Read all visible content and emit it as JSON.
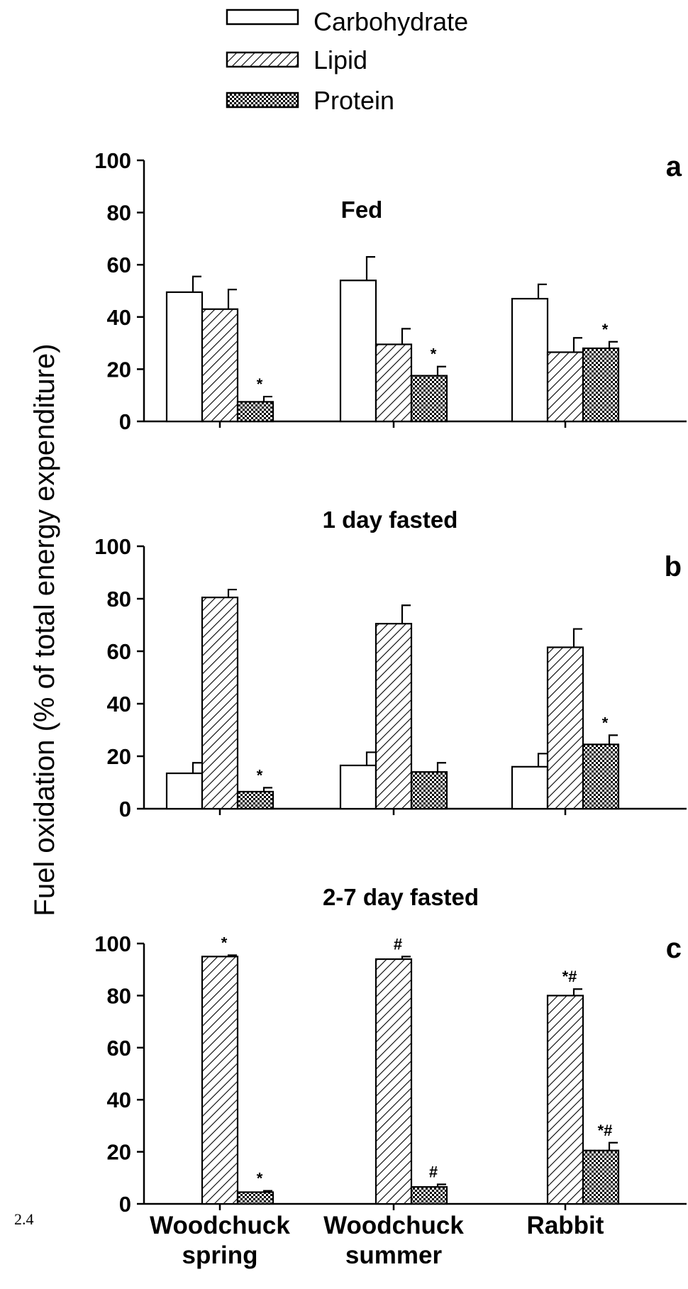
{
  "page_number": "2.4",
  "chart_data": {
    "type": "bar",
    "ylabel": "Fuel oxidation (% of total energy expenditure)",
    "ylim": [
      0,
      100
    ],
    "yticks": [
      "0",
      "20",
      "40",
      "60",
      "80",
      "100"
    ],
    "categories": [
      [
        "Woodchuck",
        "spring"
      ],
      [
        "Woodchuck",
        "summer"
      ],
      [
        "Rabbit"
      ]
    ],
    "legend": {
      "placement": "top-center",
      "entries": [
        {
          "name": "Carbohydrate",
          "fill": "white"
        },
        {
          "name": "Lipid",
          "fill": "diagonal-hatch"
        },
        {
          "name": "Protein",
          "fill": "crosshatch"
        }
      ]
    },
    "bar_colors": {
      "edge": "#000000",
      "background": "#ffffff"
    },
    "panels": [
      {
        "letter": "a",
        "title": "Fed",
        "series": [
          {
            "name": "Carbohydrate",
            "values": [
              49.5,
              54,
              47
            ],
            "errors": [
              6,
              9,
              5.5
            ],
            "marks": [
              "",
              "",
              ""
            ]
          },
          {
            "name": "Lipid",
            "values": [
              43,
              29.5,
              26.5
            ],
            "errors": [
              7.5,
              6,
              5.5
            ],
            "marks": [
              "",
              "",
              ""
            ]
          },
          {
            "name": "Protein",
            "values": [
              7.5,
              17.5,
              28
            ],
            "errors": [
              2,
              3.5,
              2.5
            ],
            "marks": [
              "*",
              "*",
              "*"
            ]
          }
        ]
      },
      {
        "letter": "b",
        "title": "1 day fasted",
        "series": [
          {
            "name": "Carbohydrate",
            "values": [
              13.5,
              16.5,
              16
            ],
            "errors": [
              4,
              5,
              5
            ],
            "marks": [
              "",
              "",
              ""
            ]
          },
          {
            "name": "Lipid",
            "values": [
              80.5,
              70.5,
              61.5
            ],
            "errors": [
              3,
              7,
              7
            ],
            "marks": [
              "",
              "",
              ""
            ]
          },
          {
            "name": "Protein",
            "values": [
              6.5,
              14,
              24.5
            ],
            "errors": [
              1.5,
              3.5,
              3.5
            ],
            "marks": [
              "*",
              "",
              "*"
            ]
          }
        ]
      },
      {
        "letter": "c",
        "title": "2-7 day fasted",
        "series": [
          {
            "name": "Carbohydrate",
            "values": [
              0,
              0,
              0
            ],
            "errors": [
              0,
              0,
              0
            ],
            "marks": [
              "",
              "",
              ""
            ]
          },
          {
            "name": "Lipid",
            "values": [
              95,
              94,
              80
            ],
            "errors": [
              0.5,
              1,
              2.5
            ],
            "marks": [
              "*",
              "#",
              "*#"
            ]
          },
          {
            "name": "Protein",
            "values": [
              4.5,
              6.5,
              20.5
            ],
            "errors": [
              0.5,
              1,
              3
            ],
            "marks": [
              "*",
              "#",
              "*#"
            ]
          }
        ]
      }
    ]
  }
}
